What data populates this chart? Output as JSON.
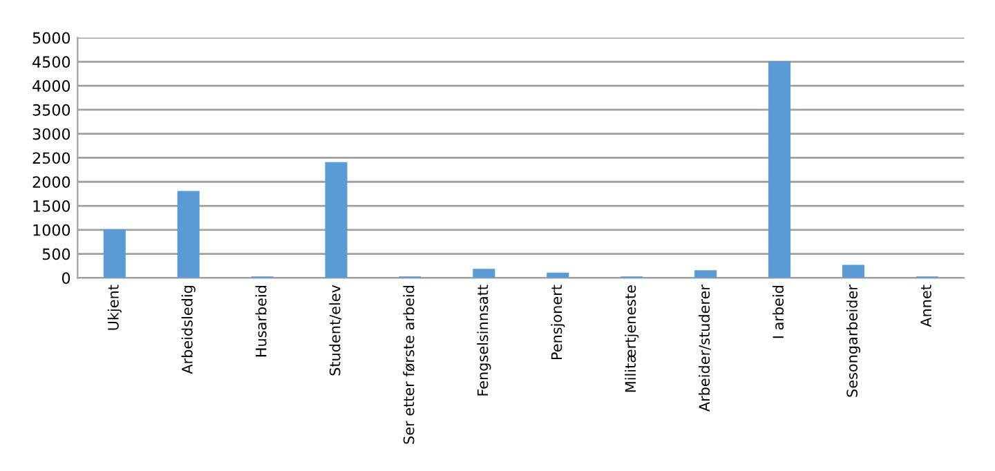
{
  "chart_data": {
    "type": "bar",
    "categories": [
      "Ukjent",
      "Arbeidsledig",
      "Husarbeid",
      "Student/elev",
      "Ser etter første arbeid",
      "Fengselsinnsatt",
      "Pensjonert",
      "Militærtjeneste",
      "Arbeider/studerer",
      "I arbeid",
      "Sesongarbeider",
      "Annet"
    ],
    "values": [
      1010,
      1810,
      30,
      2410,
      30,
      190,
      110,
      30,
      160,
      4510,
      270,
      30
    ],
    "color": "#5b9bd5",
    "ylim": [
      0,
      5000
    ],
    "yticks": [
      0,
      500,
      1000,
      1500,
      2000,
      2500,
      3000,
      3500,
      4000,
      4500,
      5000
    ],
    "grid": "y"
  }
}
